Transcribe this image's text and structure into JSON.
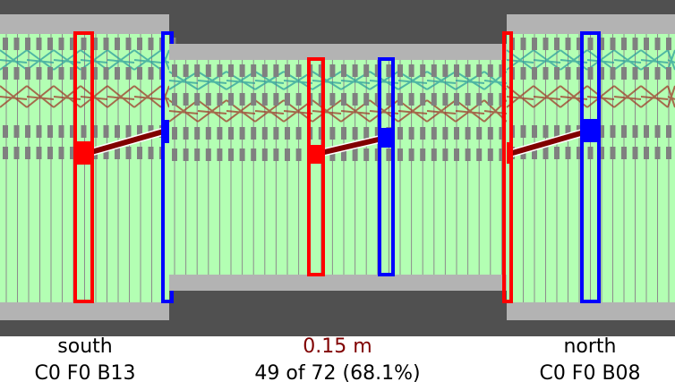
{
  "left_panel": {
    "name": "south",
    "id": "C0 F0 B13"
  },
  "center_panel": {
    "distance": "0.15 m",
    "count": "49 of 72 (68.1%)"
  },
  "right_panel": {
    "name": "north",
    "id": "C0 F0 B08"
  },
  "colors": {
    "background": "#505050",
    "rail": "#b3b3b3",
    "strip": "#b3ffb3",
    "strip_line": "#8c8c8c",
    "teal_wires": "#2e9e9e",
    "red_wires": "#a03a2a",
    "left_marker": "#ff0000",
    "right_marker": "#0000ff",
    "link": "#800000",
    "distance_text": "#800000"
  }
}
